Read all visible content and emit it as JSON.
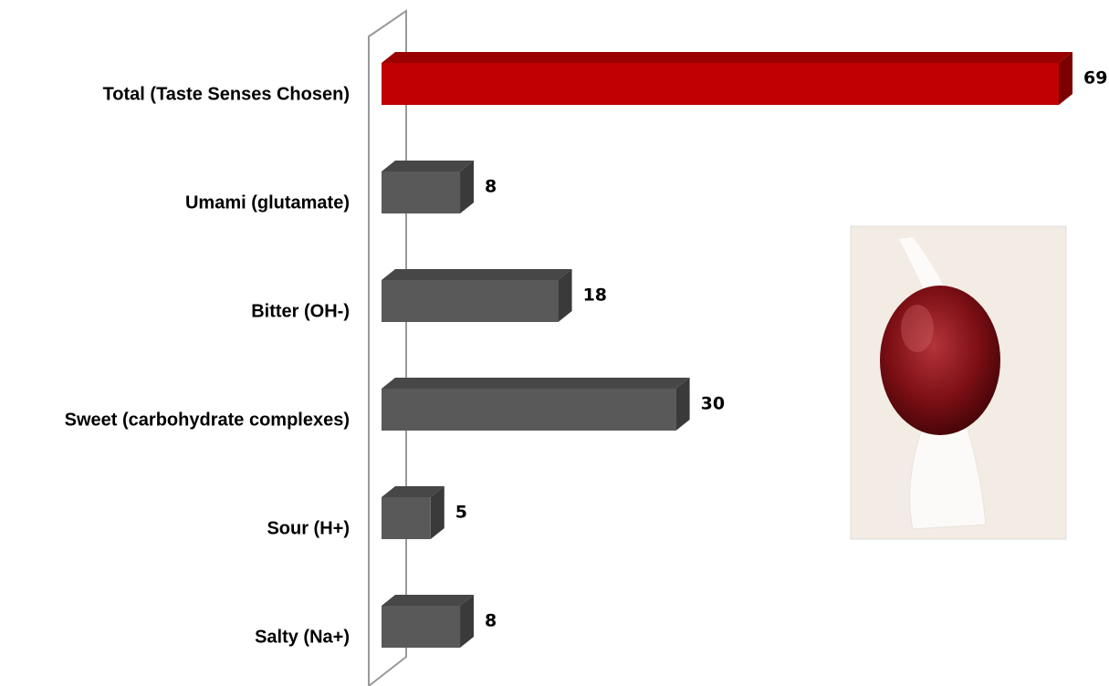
{
  "chart_data": {
    "type": "bar3d_horizontal",
    "categories": [
      "Total (Taste Senses Chosen)",
      "Umami (glutamate)",
      "Bitter (OH-)",
      "Sweet (carbohydrate complexes)",
      "Sour (H+)",
      "Salty (Na+)"
    ],
    "values": [
      69,
      8,
      18,
      30,
      5,
      8
    ],
    "colors": [
      "#c00000",
      "#595959",
      "#595959",
      "#595959",
      "#595959",
      "#595959"
    ]
  }
}
